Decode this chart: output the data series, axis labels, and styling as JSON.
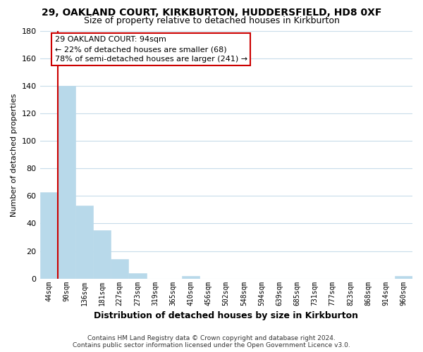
{
  "title_line1": "29, OAKLAND COURT, KIRKBURTON, HUDDERSFIELD, HD8 0XF",
  "title_line2": "Size of property relative to detached houses in Kirkburton",
  "xlabel": "Distribution of detached houses by size in Kirkburton",
  "ylabel": "Number of detached properties",
  "bar_labels": [
    "44sqm",
    "90sqm",
    "136sqm",
    "181sqm",
    "227sqm",
    "273sqm",
    "319sqm",
    "365sqm",
    "410sqm",
    "456sqm",
    "502sqm",
    "548sqm",
    "594sqm",
    "639sqm",
    "685sqm",
    "731sqm",
    "777sqm",
    "823sqm",
    "868sqm",
    "914sqm",
    "960sqm"
  ],
  "bar_heights": [
    63,
    140,
    53,
    35,
    14,
    4,
    0,
    0,
    2,
    0,
    0,
    0,
    0,
    0,
    0,
    0,
    0,
    0,
    0,
    0,
    2
  ],
  "bar_color": "#b8d9ea",
  "bar_edge_color": "#b8d9ea",
  "vline_color": "#cc0000",
  "vline_x_index": 1,
  "annotation_title": "29 OAKLAND COURT: 94sqm",
  "annotation_line1": "← 22% of detached houses are smaller (68)",
  "annotation_line2": "78% of semi-detached houses are larger (241) →",
  "annotation_box_color": "#ffffff",
  "annotation_box_edge": "#cc0000",
  "ylim": [
    0,
    180
  ],
  "yticks": [
    0,
    20,
    40,
    60,
    80,
    100,
    120,
    140,
    160,
    180
  ],
  "footer_line1": "Contains HM Land Registry data © Crown copyright and database right 2024.",
  "footer_line2": "Contains public sector information licensed under the Open Government Licence v3.0.",
  "background_color": "#ffffff",
  "grid_color": "#c8dcea",
  "title1_fontsize": 10,
  "title2_fontsize": 9,
  "xlabel_fontsize": 9,
  "ylabel_fontsize": 8,
  "tick_fontsize": 7,
  "footer_fontsize": 6.5,
  "ann_fontsize": 8
}
